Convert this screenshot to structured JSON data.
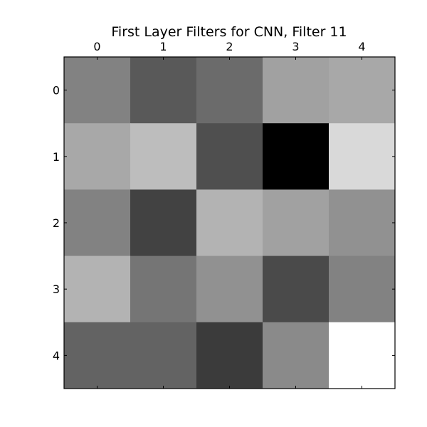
{
  "chart_data": {
    "type": "heatmap",
    "title": "First Layer Filters for CNN, Filter 11",
    "xlabel": "",
    "ylabel": "",
    "colormap": "gray",
    "x_tick_position": "top",
    "x_categories": [
      "0",
      "1",
      "2",
      "3",
      "4"
    ],
    "y_categories": [
      "0",
      "1",
      "2",
      "3",
      "4"
    ],
    "grid": false,
    "value_range": [
      0,
      1
    ],
    "values": [
      [
        0.51,
        0.35,
        0.42,
        0.63,
        0.66
      ],
      [
        0.66,
        0.74,
        0.31,
        0.0,
        0.85
      ],
      [
        0.51,
        0.26,
        0.7,
        0.63,
        0.57
      ],
      [
        0.7,
        0.46,
        0.57,
        0.29,
        0.51
      ],
      [
        0.39,
        0.39,
        0.23,
        0.54,
        1.0
      ]
    ]
  }
}
